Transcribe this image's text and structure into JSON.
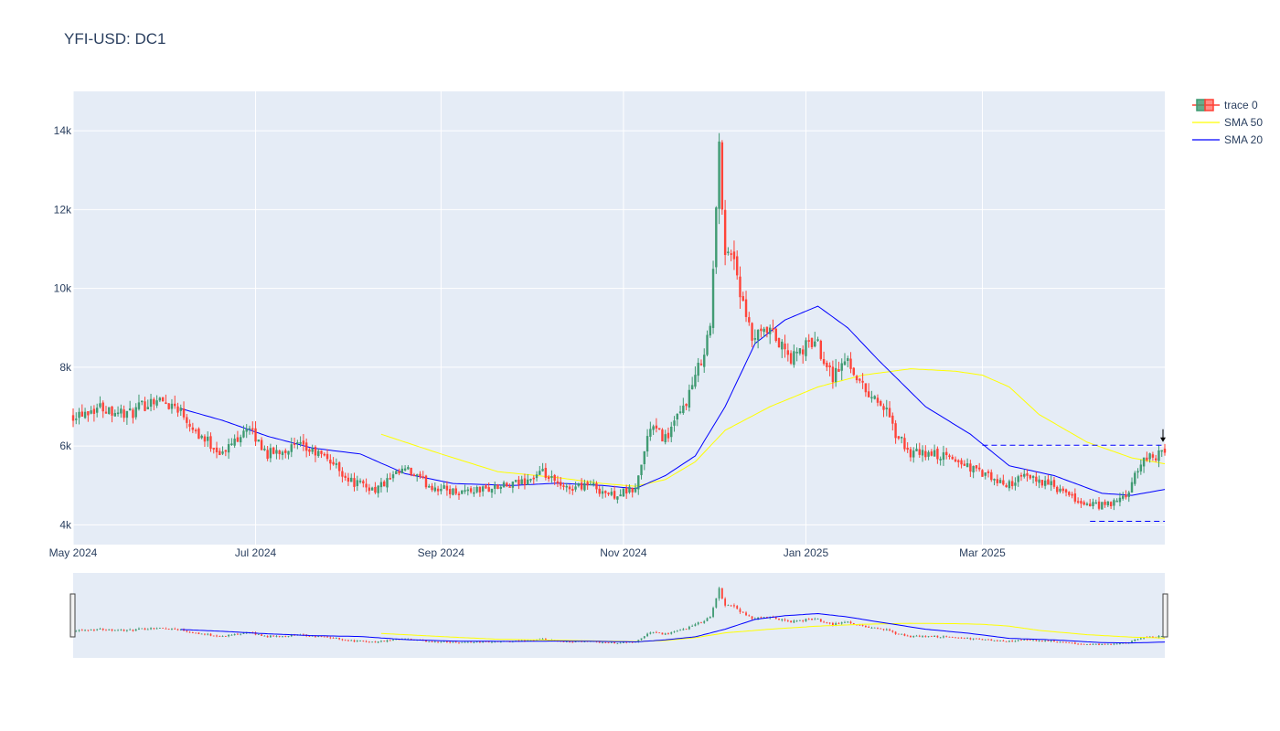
{
  "chart_data": {
    "type": "candlestick",
    "title": "YFI-USD: DC1",
    "x_range": [
      "2024-05-01",
      "2025-05-01"
    ],
    "y_range": [
      3500,
      15000
    ],
    "y_ticks": [
      4000,
      6000,
      8000,
      10000,
      12000,
      14000
    ],
    "y_tick_labels": [
      "4k",
      "6k",
      "8k",
      "10k",
      "12k",
      "14k"
    ],
    "x_ticks": [
      "2024-05-01",
      "2024-07-01",
      "2024-09-01",
      "2024-11-01",
      "2025-01-01",
      "2025-03-01"
    ],
    "x_tick_labels": [
      "May 2024",
      "Jul 2024",
      "Sep 2024",
      "Nov 2024",
      "Jan 2025",
      "Mar 2025"
    ],
    "colors": {
      "increasing": "#3d9970",
      "decreasing": "#ff4136",
      "sma50": "#ffff00",
      "sma20": "#0000ff",
      "plot_bg": "#e5ecf6",
      "grid": "#ffffff",
      "level_line": "#0000ff"
    },
    "grid": true,
    "legend_position": "top-right",
    "legend": [
      {
        "name": "trace 0",
        "kind": "candle"
      },
      {
        "name": "SMA 50",
        "kind": "line",
        "color": "#ffff00"
      },
      {
        "name": "SMA 20",
        "kind": "line",
        "color": "#0000ff"
      }
    ],
    "price_anchors": [
      [
        "2024-05-01",
        6800
      ],
      [
        "2024-05-10",
        7000
      ],
      [
        "2024-05-20",
        6800
      ],
      [
        "2024-05-28",
        7200
      ],
      [
        "2024-06-05",
        7000
      ],
      [
        "2024-06-12",
        6300
      ],
      [
        "2024-06-20",
        5800
      ],
      [
        "2024-06-28",
        6500
      ],
      [
        "2024-07-05",
        5800
      ],
      [
        "2024-07-15",
        6000
      ],
      [
        "2024-07-25",
        5700
      ],
      [
        "2024-08-02",
        5100
      ],
      [
        "2024-08-10",
        4900
      ],
      [
        "2024-08-20",
        5400
      ],
      [
        "2024-08-28",
        5000
      ],
      [
        "2024-09-05",
        4850
      ],
      [
        "2024-09-15",
        4900
      ],
      [
        "2024-09-25",
        5000
      ],
      [
        "2024-10-05",
        5300
      ],
      [
        "2024-10-12",
        4900
      ],
      [
        "2024-10-20",
        5050
      ],
      [
        "2024-10-28",
        4750
      ],
      [
        "2024-11-05",
        4900
      ],
      [
        "2024-11-10",
        6500
      ],
      [
        "2024-11-15",
        6200
      ],
      [
        "2024-11-20",
        6800
      ],
      [
        "2024-11-25",
        7700
      ],
      [
        "2024-11-30",
        9000
      ],
      [
        "2024-12-03",
        13500
      ],
      [
        "2024-12-05",
        11000
      ],
      [
        "2024-12-08",
        10800
      ],
      [
        "2024-12-11",
        9500
      ],
      [
        "2024-12-14",
        8700
      ],
      [
        "2024-12-20",
        8900
      ],
      [
        "2024-12-27",
        8200
      ],
      [
        "2025-01-04",
        8700
      ],
      [
        "2025-01-10",
        7800
      ],
      [
        "2025-01-15",
        8200
      ],
      [
        "2025-01-20",
        7500
      ],
      [
        "2025-01-27",
        7000
      ],
      [
        "2025-01-31",
        6300
      ],
      [
        "2025-02-05",
        5800
      ],
      [
        "2025-02-12",
        5800
      ],
      [
        "2025-02-20",
        5650
      ],
      [
        "2025-03-01",
        5300
      ],
      [
        "2025-03-08",
        5000
      ],
      [
        "2025-03-15",
        5200
      ],
      [
        "2025-03-22",
        5100
      ],
      [
        "2025-03-28",
        4800
      ],
      [
        "2025-04-05",
        4500
      ],
      [
        "2025-04-12",
        4500
      ],
      [
        "2025-04-18",
        4700
      ],
      [
        "2025-04-24",
        5700
      ],
      [
        "2025-05-01",
        5800
      ]
    ],
    "sma50_start": "2024-08-12",
    "sma50_anchors": [
      [
        "2024-08-12",
        6300
      ],
      [
        "2024-09-01",
        5800
      ],
      [
        "2024-09-20",
        5350
      ],
      [
        "2024-10-10",
        5200
      ],
      [
        "2024-10-25",
        5050
      ],
      [
        "2024-11-05",
        4980
      ],
      [
        "2024-11-15",
        5150
      ],
      [
        "2024-11-25",
        5600
      ],
      [
        "2024-12-05",
        6400
      ],
      [
        "2024-12-20",
        7000
      ],
      [
        "2025-01-05",
        7500
      ],
      [
        "2025-01-20",
        7800
      ],
      [
        "2025-02-05",
        7960
      ],
      [
        "2025-02-20",
        7900
      ],
      [
        "2025-03-01",
        7800
      ],
      [
        "2025-03-10",
        7500
      ],
      [
        "2025-03-20",
        6800
      ],
      [
        "2025-04-05",
        6100
      ],
      [
        "2025-04-20",
        5700
      ],
      [
        "2025-05-01",
        5550
      ]
    ],
    "sma20_start": "2024-06-06",
    "sma20_anchors": [
      [
        "2024-06-06",
        6950
      ],
      [
        "2024-06-20",
        6650
      ],
      [
        "2024-07-05",
        6250
      ],
      [
        "2024-07-20",
        5950
      ],
      [
        "2024-08-05",
        5800
      ],
      [
        "2024-08-20",
        5300
      ],
      [
        "2024-09-05",
        5050
      ],
      [
        "2024-09-25",
        5000
      ],
      [
        "2024-10-10",
        5060
      ],
      [
        "2024-10-25",
        5000
      ],
      [
        "2024-11-05",
        4920
      ],
      [
        "2024-11-15",
        5250
      ],
      [
        "2024-11-25",
        5750
      ],
      [
        "2024-12-05",
        7000
      ],
      [
        "2024-12-15",
        8600
      ],
      [
        "2024-12-25",
        9200
      ],
      [
        "2025-01-05",
        9550
      ],
      [
        "2025-01-15",
        9000
      ],
      [
        "2025-01-25",
        8200
      ],
      [
        "2025-02-10",
        7000
      ],
      [
        "2025-02-25",
        6300
      ],
      [
        "2025-03-10",
        5500
      ],
      [
        "2025-03-25",
        5250
      ],
      [
        "2025-04-10",
        4800
      ],
      [
        "2025-04-20",
        4750
      ],
      [
        "2025-05-01",
        4900
      ]
    ],
    "level_lines": [
      {
        "from": "2025-03-01",
        "to": "2025-05-01",
        "value": 6020
      },
      {
        "from": "2025-04-06",
        "to": "2025-05-01",
        "value": 4090
      }
    ],
    "marker": {
      "date": "2025-05-01",
      "value": 6150,
      "symbol": "arrow-down"
    }
  }
}
